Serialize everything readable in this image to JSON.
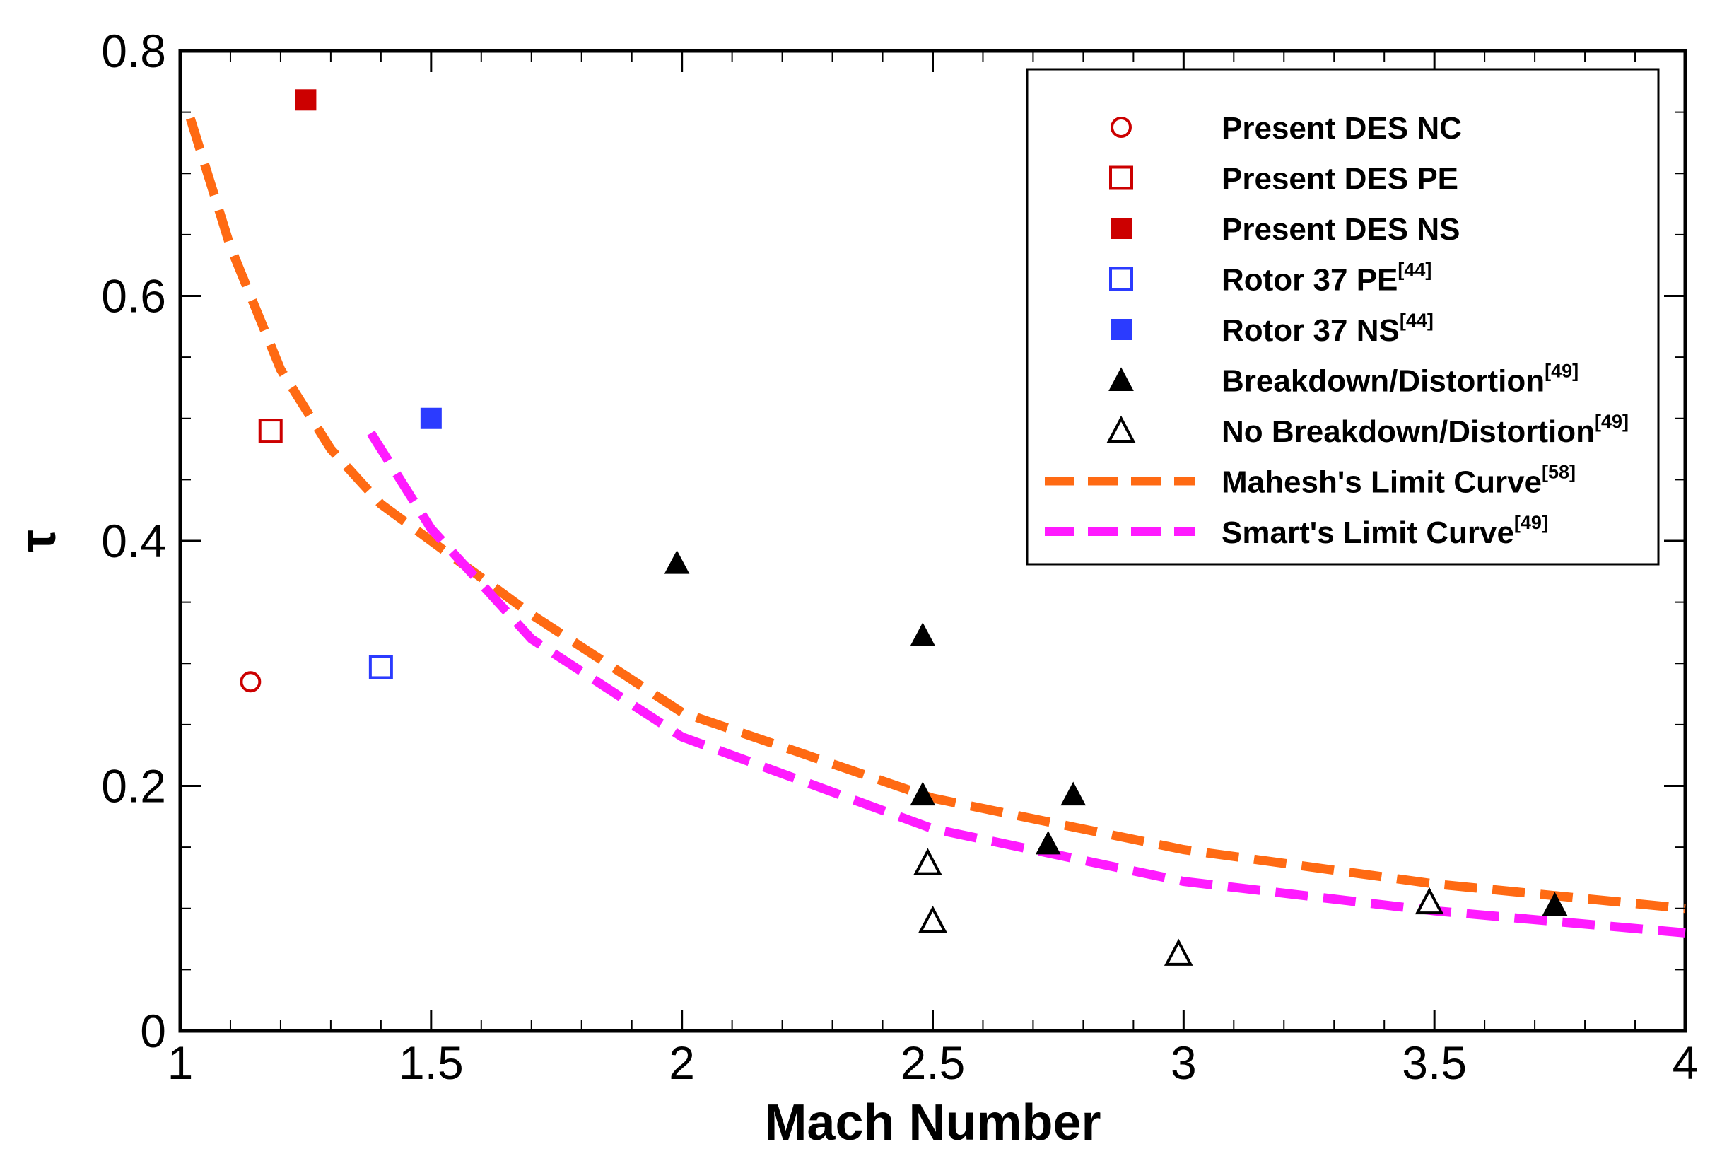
{
  "chart_data": {
    "type": "scatter",
    "title": "",
    "xlabel": "Mach Number",
    "ylabel": "τ",
    "xlim": [
      1,
      4
    ],
    "ylim": [
      0,
      0.8
    ],
    "xticks": [
      "1",
      "1.5",
      "2",
      "2.5",
      "3",
      "3.5",
      "4"
    ],
    "yticks": [
      "0",
      "0.2",
      "0.4",
      "0.6",
      "0.8"
    ],
    "legend_position": "top-right",
    "series": [
      {
        "name": "Present DES NC",
        "ref": "",
        "marker": "circle-open",
        "color": "#cc0000",
        "points": [
          [
            1.14,
            0.285
          ]
        ]
      },
      {
        "name": "Present DES PE",
        "ref": "",
        "marker": "square-open",
        "color": "#cc0000",
        "points": [
          [
            1.18,
            0.49
          ]
        ]
      },
      {
        "name": "Present DES NS",
        "ref": "",
        "marker": "square-filled",
        "color": "#cc0000",
        "points": [
          [
            1.25,
            0.76
          ]
        ]
      },
      {
        "name": "Rotor 37 PE",
        "ref": "[44]",
        "marker": "square-open",
        "color": "#2b3bff",
        "points": [
          [
            1.4,
            0.297
          ]
        ]
      },
      {
        "name": "Rotor 37 NS",
        "ref": "[44]",
        "marker": "square-filled",
        "color": "#2b3bff",
        "points": [
          [
            1.5,
            0.5
          ]
        ]
      },
      {
        "name": "Breakdown/Distortion",
        "ref": "[49]",
        "marker": "triangle-filled",
        "color": "#000000",
        "points": [
          [
            1.99,
            0.382
          ],
          [
            2.48,
            0.323
          ],
          [
            2.48,
            0.193
          ],
          [
            2.73,
            0.153
          ],
          [
            2.78,
            0.193
          ],
          [
            3.74,
            0.103
          ]
        ]
      },
      {
        "name": "No Breakdown/Distortion",
        "ref": "[49]",
        "marker": "triangle-open",
        "color": "#000000",
        "points": [
          [
            2.49,
            0.137
          ],
          [
            2.5,
            0.09
          ],
          [
            2.99,
            0.063
          ],
          [
            3.49,
            0.105
          ]
        ]
      },
      {
        "name": "Mahesh's Limit Curve",
        "ref": "[58]",
        "marker": "dashed-line",
        "color": "#ff6a13",
        "x": [
          1.02,
          1.1,
          1.2,
          1.3,
          1.4,
          1.5,
          1.7,
          2.0,
          2.5,
          3.0,
          3.5,
          4.0
        ],
        "y": [
          0.745,
          0.64,
          0.54,
          0.475,
          0.43,
          0.4,
          0.34,
          0.26,
          0.19,
          0.148,
          0.12,
          0.1
        ]
      },
      {
        "name": "Smart's Limit Curve",
        "ref": "[49]",
        "marker": "dashed-line",
        "color": "#ff1aff",
        "x": [
          1.38,
          1.5,
          1.7,
          2.0,
          2.5,
          3.0,
          3.5,
          4.0
        ],
        "y": [
          0.488,
          0.41,
          0.32,
          0.24,
          0.165,
          0.122,
          0.098,
          0.08
        ]
      }
    ]
  }
}
